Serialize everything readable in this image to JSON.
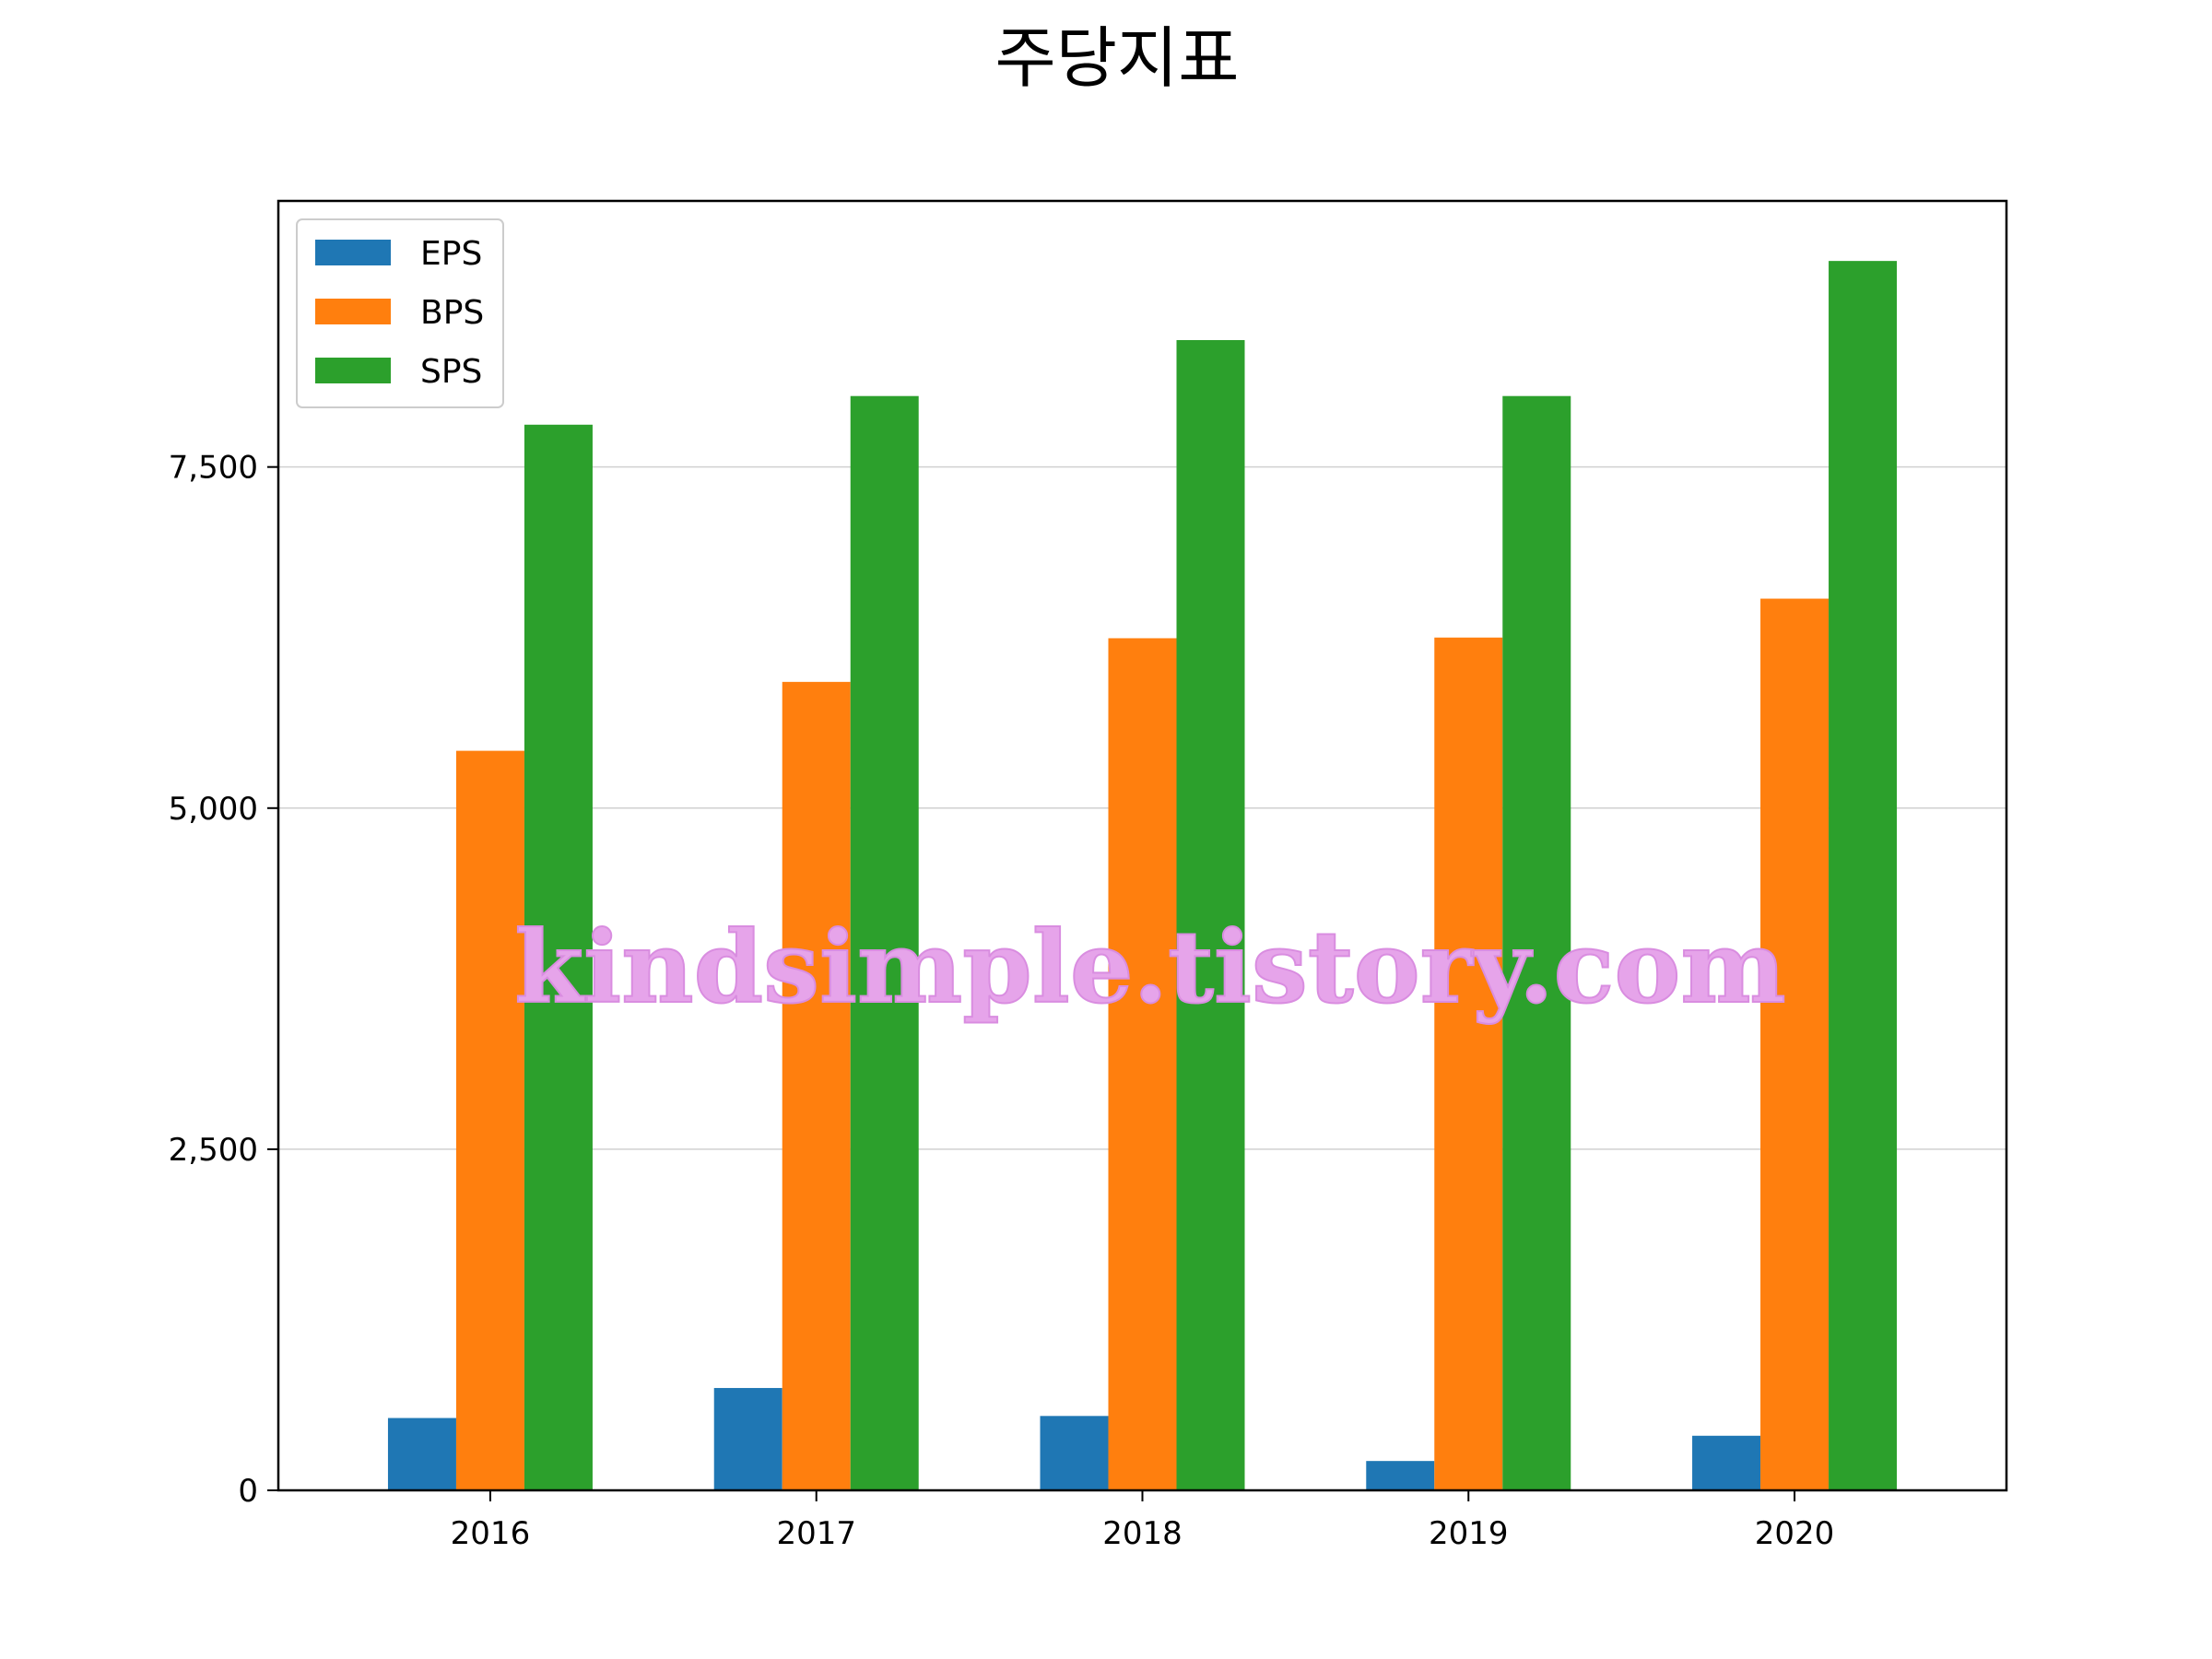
{
  "chart_data": {
    "type": "bar",
    "title": "주당지표",
    "xlabel": "",
    "ylabel": "",
    "categories": [
      "2016",
      "2017",
      "2018",
      "2019",
      "2020"
    ],
    "series": [
      {
        "name": "EPS",
        "color": "#1f77b4",
        "values": [
          530,
          750,
          545,
          215,
          400
        ]
      },
      {
        "name": "BPS",
        "color": "#ff7f0e",
        "values": [
          5420,
          5925,
          6245,
          6250,
          6535
        ]
      },
      {
        "name": "SPS",
        "color": "#2ca02c",
        "values": [
          7810,
          8020,
          8430,
          8020,
          9010
        ]
      }
    ],
    "ylim": [
      0,
      9450
    ],
    "yticks": [
      0,
      2500,
      5000,
      7500
    ],
    "ytick_labels": [
      "0",
      "2,500",
      "5,000",
      "7,500"
    ],
    "grid": "horizontal",
    "legend_position": "top-left",
    "watermark": "kindsimple.tistory.com"
  }
}
